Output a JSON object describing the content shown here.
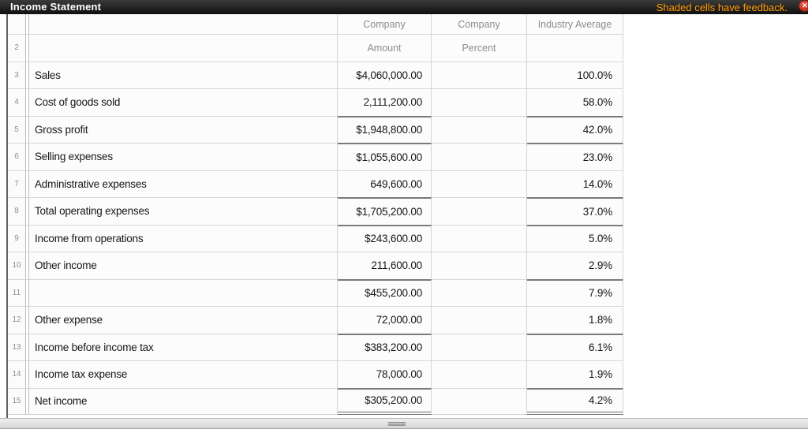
{
  "titlebar": {
    "title": "Income Statement",
    "notice": "Shaded cells have feedback.",
    "notice_color": "#ff9d00",
    "close_glyph": "✕"
  },
  "table": {
    "header": {
      "row2_num": "2",
      "company_amount": "Company",
      "company_percent": "Company",
      "industry_average": "Industry Average",
      "amount": "Amount",
      "percent": "Percent"
    },
    "rows": [
      {
        "num": "3",
        "label": "Sales",
        "amount": "$4,060,000.00",
        "percent": "",
        "industry": "100.0%"
      },
      {
        "num": "4",
        "label": "Cost of goods sold",
        "amount": "2,111,200.00",
        "percent": "",
        "industry": "58.0%"
      },
      {
        "num": "5",
        "label": "Gross profit",
        "amount": "$1,948,800.00",
        "percent": "",
        "industry": "42.0%"
      },
      {
        "num": "6",
        "label": "Selling expenses",
        "amount": "$1,055,600.00",
        "percent": "",
        "industry": "23.0%"
      },
      {
        "num": "7",
        "label": "Administrative expenses",
        "amount": "649,600.00",
        "percent": "",
        "industry": "14.0%"
      },
      {
        "num": "8",
        "label": "Total operating expenses",
        "amount": "$1,705,200.00",
        "percent": "",
        "industry": "37.0%"
      },
      {
        "num": "9",
        "label": "Income from operations",
        "amount": "$243,600.00",
        "percent": "",
        "industry": "5.0%"
      },
      {
        "num": "10",
        "label": "Other income",
        "amount": "211,600.00",
        "percent": "",
        "industry": "2.9%"
      },
      {
        "num": "11",
        "label": "",
        "amount": "$455,200.00",
        "percent": "",
        "industry": "7.9%"
      },
      {
        "num": "12",
        "label": "Other expense",
        "amount": "72,000.00",
        "percent": "",
        "industry": "1.8%"
      },
      {
        "num": "13",
        "label": "Income before income tax",
        "amount": "$383,200.00",
        "percent": "",
        "industry": "6.1%"
      },
      {
        "num": "14",
        "label": "Income tax expense",
        "amount": "78,000.00",
        "percent": "",
        "industry": "1.9%"
      },
      {
        "num": "15",
        "label": "Net income",
        "amount": "$305,200.00",
        "percent": "",
        "industry": "4.2%"
      }
    ]
  },
  "colors": {
    "titlebar_bg": "#1b1b1b",
    "accent_orange": "#ff9d00",
    "close_red": "#cf3526",
    "grid_line": "#d7d7d7",
    "accounting_rule": "#7a7a7a"
  }
}
